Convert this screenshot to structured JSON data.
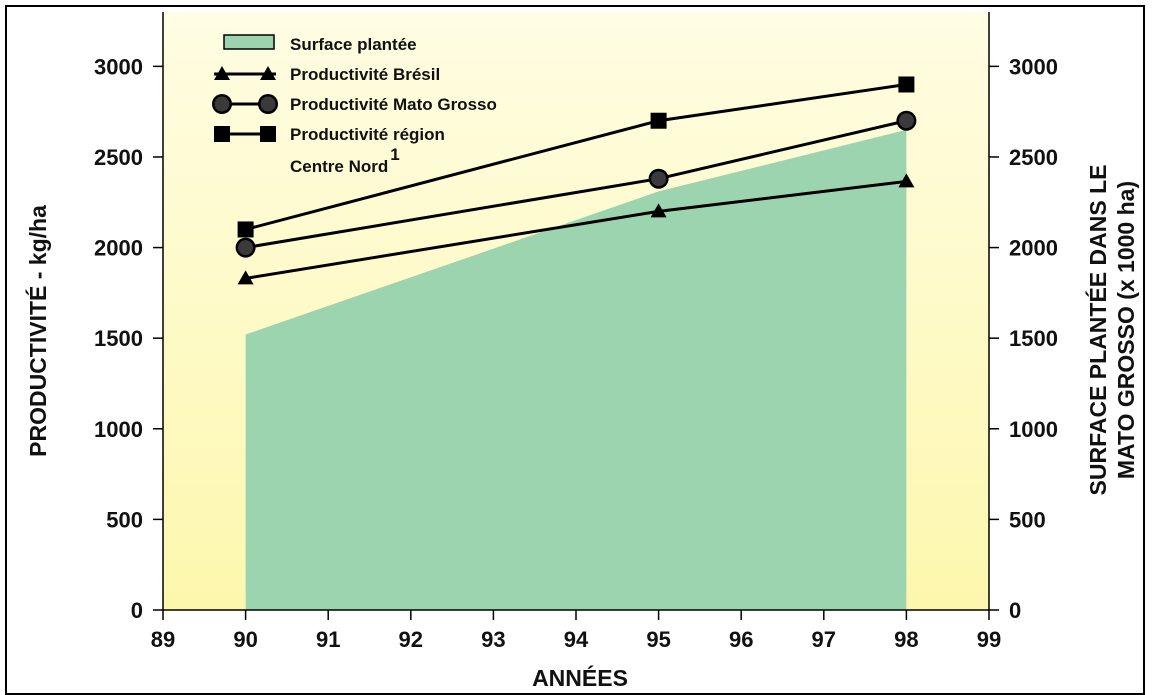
{
  "chart_data": {
    "type": "line",
    "xlabel": "ANNÉES",
    "ylabel_left": "PRODUCTIVITÉ - kg/ha",
    "ylabel_right": [
      "SURFACE PLANTÉE DANS LE",
      "MATO GROSSO (x 1000 ha)"
    ],
    "xlim": [
      89,
      99
    ],
    "ylim": [
      0,
      3300
    ],
    "x_ticks": [
      89,
      90,
      91,
      92,
      93,
      94,
      95,
      96,
      97,
      98,
      99
    ],
    "y_ticks": [
      0,
      500,
      1000,
      1500,
      2000,
      2500,
      3000
    ],
    "grid": false,
    "legend_position": "top-left",
    "series": [
      {
        "name": "Surface plantée",
        "kind": "area",
        "color": "#9dd4b0",
        "x": [
          90,
          95,
          98
        ],
        "values": [
          1520,
          2310,
          2650
        ]
      },
      {
        "name": "Productivité Brésil",
        "marker": "triangle",
        "color": "#000000",
        "x": [
          90,
          95,
          98
        ],
        "values": [
          1830,
          2200,
          2365
        ]
      },
      {
        "name": "Productivité Mato Grosso",
        "marker": "circle",
        "color": "#000000",
        "x": [
          90,
          95,
          98
        ],
        "values": [
          2000,
          2380,
          2700
        ]
      },
      {
        "name": "Productivité région",
        "name_line2": "Centre Nord",
        "superscript": "1",
        "marker": "square",
        "color": "#000000",
        "x": [
          90,
          95,
          98
        ],
        "values": [
          2100,
          2700,
          2900
        ]
      }
    ],
    "background_gradient": [
      "#fffde3",
      "#fdf7ad"
    ]
  }
}
